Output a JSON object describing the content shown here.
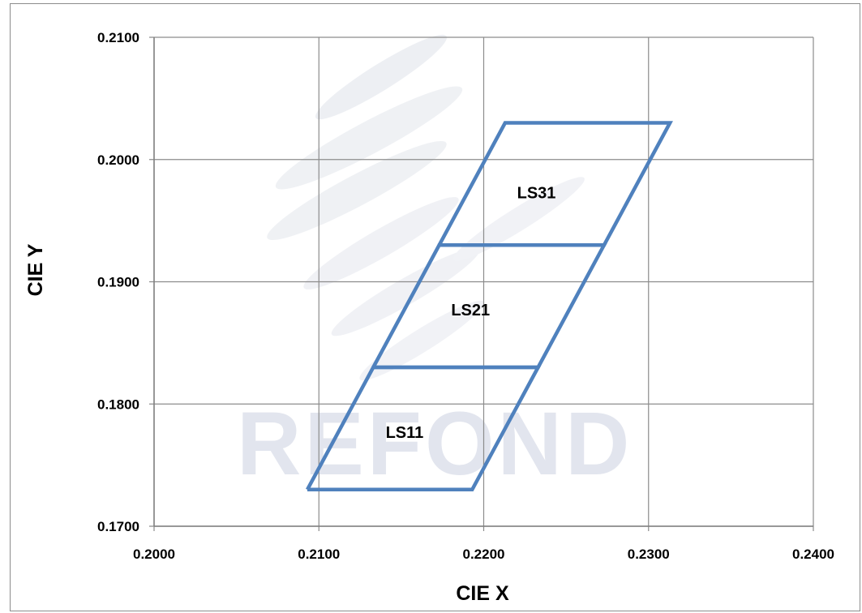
{
  "chart_data": {
    "type": "line",
    "title": "",
    "xlabel": "CIE  X",
    "ylabel": "CIE  Y",
    "xlim": [
      0.2,
      0.24
    ],
    "ylim": [
      0.17,
      0.21
    ],
    "x_ticks": [
      "0.2000",
      "0.2100",
      "0.2200",
      "0.2300",
      "0.2400"
    ],
    "y_ticks": [
      "0.1700",
      "0.1800",
      "0.1900",
      "0.2000",
      "0.2100"
    ],
    "grid": true,
    "legend": "none",
    "line_color": "#4f81bd",
    "watermark": "REFOND",
    "series": [
      {
        "label": "LS11",
        "label_at": [
          0.2152,
          0.1777
        ],
        "points": [
          [
            0.2093,
            0.173
          ],
          [
            0.2193,
            0.173
          ],
          [
            0.2233,
            0.183
          ],
          [
            0.2133,
            0.183
          ],
          [
            0.2093,
            0.173
          ]
        ]
      },
      {
        "label": "LS21",
        "label_at": [
          0.2192,
          0.1877
        ],
        "points": [
          [
            0.2133,
            0.183
          ],
          [
            0.2233,
            0.183
          ],
          [
            0.2273,
            0.193
          ],
          [
            0.2173,
            0.193
          ],
          [
            0.2133,
            0.183
          ]
        ]
      },
      {
        "label": "LS31",
        "label_at": [
          0.2232,
          0.1973
        ],
        "points": [
          [
            0.2173,
            0.193
          ],
          [
            0.2273,
            0.193
          ],
          [
            0.2313,
            0.203
          ],
          [
            0.2213,
            0.203
          ],
          [
            0.2173,
            0.193
          ]
        ]
      }
    ]
  }
}
